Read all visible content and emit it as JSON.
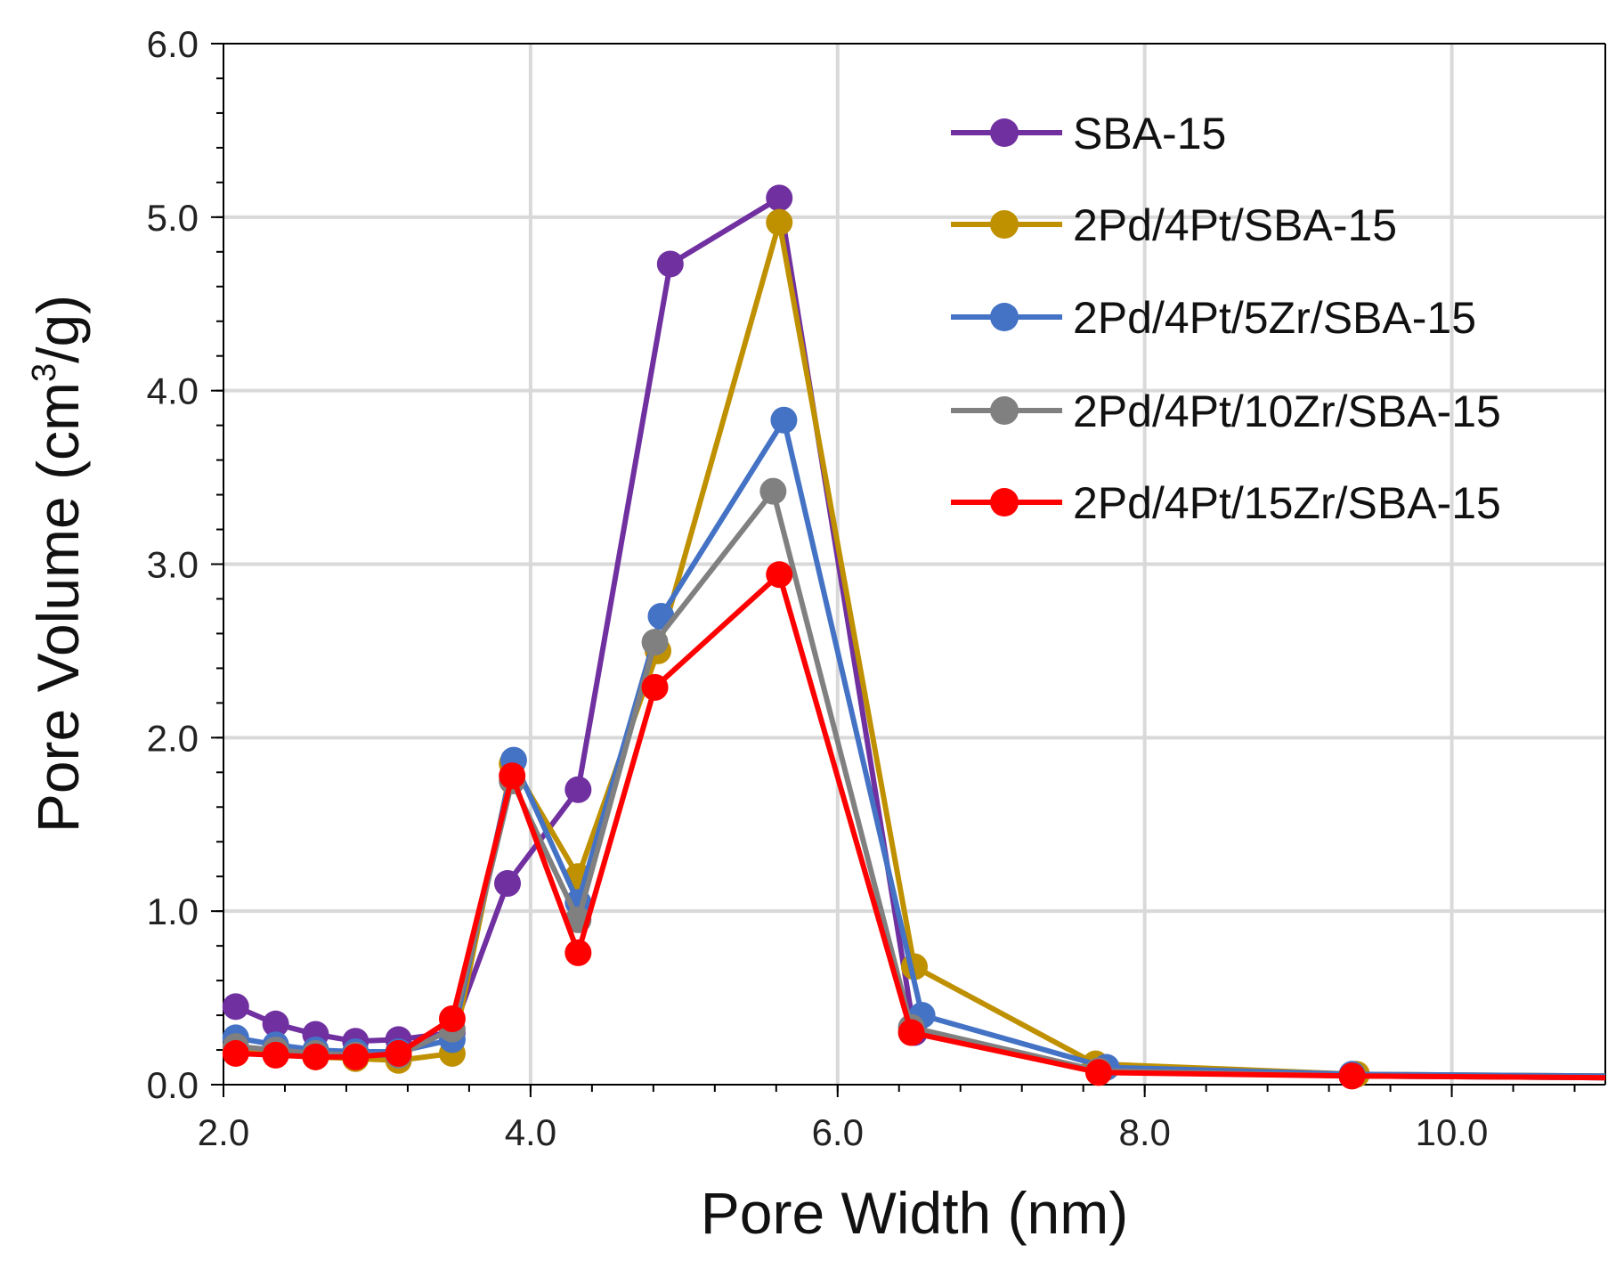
{
  "chart_data": {
    "type": "line",
    "title": "",
    "xlabel": "Pore Width (nm)",
    "ylabel_parts": {
      "pre": "Pore Volume (cm",
      "sup": "3",
      "post": "/g)"
    },
    "xlim": [
      2.0,
      11.0
    ],
    "ylim": [
      0.0,
      6.0
    ],
    "xticks": [
      "2.0",
      "4.0",
      "6.0",
      "8.0",
      "10.0"
    ],
    "yticks": [
      "0.0",
      "1.0",
      "2.0",
      "3.0",
      "4.0",
      "5.0",
      "6.0"
    ],
    "grid": true,
    "legend_position": "top-right",
    "series": [
      {
        "name": "SBA-15",
        "color": "#7030A0",
        "x": [
          2.08,
          2.34,
          2.6,
          2.86,
          3.14,
          3.49,
          3.85,
          4.31,
          4.91,
          5.62,
          6.5,
          7.7,
          9.35,
          11.0
        ],
        "y": [
          0.45,
          0.35,
          0.29,
          0.25,
          0.26,
          0.3,
          1.16,
          1.7,
          4.73,
          5.11,
          0.3,
          0.08,
          0.05,
          0.04
        ]
      },
      {
        "name": "2Pd/4Pt/SBA-15",
        "color": "#BF9000",
        "x": [
          2.08,
          2.34,
          2.6,
          2.86,
          3.14,
          3.49,
          3.88,
          4.31,
          4.83,
          5.62,
          6.5,
          7.68,
          9.38,
          11.0
        ],
        "y": [
          0.2,
          0.18,
          0.16,
          0.15,
          0.14,
          0.18,
          1.85,
          1.2,
          2.5,
          4.97,
          0.68,
          0.12,
          0.06,
          0.05
        ]
      },
      {
        "name": "2Pd/4Pt/5Zr/SBA-15",
        "color": "#4472C4",
        "x": [
          2.08,
          2.34,
          2.6,
          2.86,
          3.14,
          3.49,
          3.89,
          4.31,
          4.85,
          5.65,
          6.55,
          7.75,
          9.35,
          11.0
        ],
        "y": [
          0.27,
          0.23,
          0.2,
          0.19,
          0.19,
          0.26,
          1.87,
          1.05,
          2.7,
          3.83,
          0.4,
          0.1,
          0.06,
          0.05
        ]
      },
      {
        "name": "2Pd/4Pt/10Zr/SBA-15",
        "color": "#808080",
        "x": [
          2.08,
          2.34,
          2.6,
          2.86,
          3.14,
          3.49,
          3.88,
          4.31,
          4.81,
          5.58,
          6.48,
          7.7,
          9.35,
          11.0
        ],
        "y": [
          0.22,
          0.2,
          0.18,
          0.17,
          0.17,
          0.32,
          1.75,
          0.95,
          2.55,
          3.42,
          0.33,
          0.08,
          0.05,
          0.04
        ]
      },
      {
        "name": "2Pd/4Pt/15Zr/SBA-15",
        "color": "#FF0000",
        "x": [
          2.08,
          2.34,
          2.6,
          2.86,
          3.14,
          3.49,
          3.88,
          4.31,
          4.81,
          5.62,
          6.48,
          7.7,
          9.35,
          11.0
        ],
        "y": [
          0.18,
          0.17,
          0.16,
          0.16,
          0.18,
          0.38,
          1.78,
          0.76,
          2.29,
          2.94,
          0.3,
          0.07,
          0.05,
          0.04
        ]
      }
    ]
  }
}
